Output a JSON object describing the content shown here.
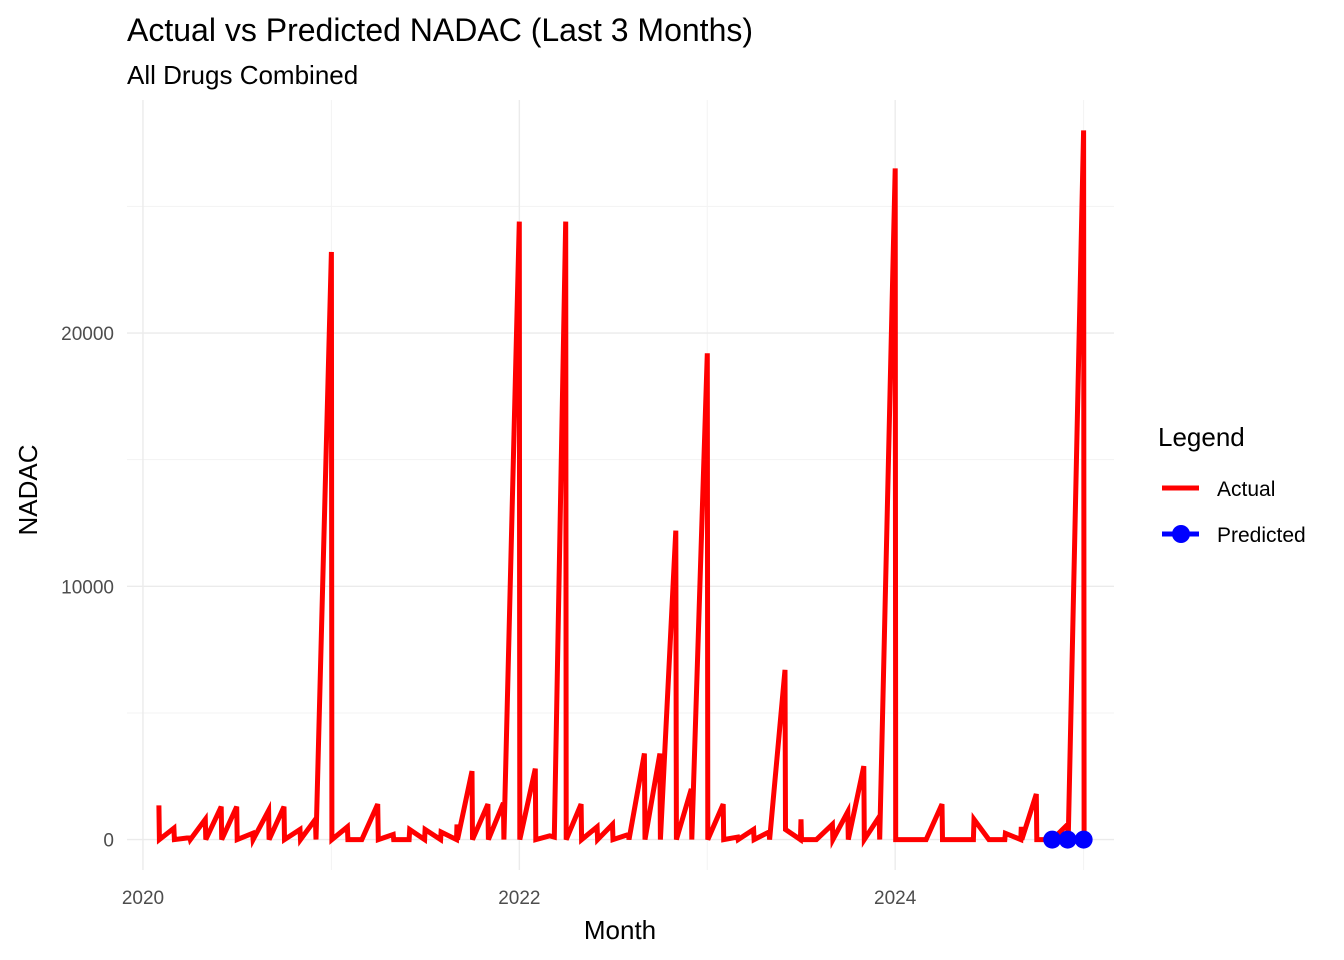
{
  "chart_data": {
    "type": "line",
    "title": "Actual vs Predicted NADAC (Last 3 Months)",
    "subtitle": "All Drugs Combined",
    "xlabel": "Month",
    "ylabel": "NADAC",
    "x_ticks": [
      "2020",
      "2022",
      "2024"
    ],
    "y_ticks": [
      0,
      10000,
      20000
    ],
    "xlim": [
      "2019-12",
      "2025-03"
    ],
    "ylim": [
      -1200,
      29200
    ],
    "grid": true,
    "legend": {
      "title": "Legend",
      "position": "right",
      "entries": [
        {
          "label": "Actual",
          "color": "#ff0000",
          "style": "line"
        },
        {
          "label": "Predicted",
          "color": "#0000ff",
          "style": "line-point"
        }
      ]
    },
    "series": [
      {
        "name": "Actual",
        "color": "#ff0000",
        "points": [
          [
            "2020-02-01",
            1350
          ],
          [
            "2020-02-02",
            0
          ],
          [
            "2020-03-01",
            450
          ],
          [
            "2020-03-02",
            0
          ],
          [
            "2020-04-01",
            80
          ],
          [
            "2020-04-02",
            0
          ],
          [
            "2020-05-01",
            800
          ],
          [
            "2020-05-02",
            0
          ],
          [
            "2020-06-01",
            1300
          ],
          [
            "2020-06-02",
            0
          ],
          [
            "2020-07-01",
            1300
          ],
          [
            "2020-07-02",
            0
          ],
          [
            "2020-08-01",
            250
          ],
          [
            "2020-08-02",
            0
          ],
          [
            "2020-09-01",
            1150
          ],
          [
            "2020-09-02",
            0
          ],
          [
            "2020-10-01",
            1300
          ],
          [
            "2020-10-02",
            0
          ],
          [
            "2020-11-01",
            400
          ],
          [
            "2020-11-02",
            0
          ],
          [
            "2020-12-01",
            800
          ],
          [
            "2020-12-02",
            0
          ],
          [
            "2021-01-01",
            23200
          ],
          [
            "2021-01-02",
            0
          ],
          [
            "2021-02-01",
            500
          ],
          [
            "2021-02-02",
            0
          ],
          [
            "2021-03-01",
            0
          ],
          [
            "2021-04-01",
            1400
          ],
          [
            "2021-04-02",
            0
          ],
          [
            "2021-05-01",
            200
          ],
          [
            "2021-05-02",
            0
          ],
          [
            "2021-06-01",
            0
          ],
          [
            "2021-06-02",
            400
          ],
          [
            "2021-07-01",
            0
          ],
          [
            "2021-07-02",
            400
          ],
          [
            "2021-08-01",
            0
          ],
          [
            "2021-08-02",
            300
          ],
          [
            "2021-09-01",
            0
          ],
          [
            "2021-09-02",
            600
          ],
          [
            "2021-09-03",
            0
          ],
          [
            "2021-10-01",
            2700
          ],
          [
            "2021-10-02",
            0
          ],
          [
            "2021-11-01",
            1400
          ],
          [
            "2021-11-02",
            0
          ],
          [
            "2021-12-01",
            1450
          ],
          [
            "2021-12-02",
            0
          ],
          [
            "2022-01-01",
            24400
          ],
          [
            "2022-01-02",
            0
          ],
          [
            "2022-02-01",
            2800
          ],
          [
            "2022-02-02",
            0
          ],
          [
            "2022-03-01",
            150
          ],
          [
            "2022-03-10",
            100
          ],
          [
            "2022-04-01",
            24400
          ],
          [
            "2022-04-02",
            0
          ],
          [
            "2022-05-01",
            1400
          ],
          [
            "2022-05-02",
            0
          ],
          [
            "2022-06-01",
            500
          ],
          [
            "2022-06-02",
            0
          ],
          [
            "2022-07-01",
            600
          ],
          [
            "2022-07-02",
            0
          ],
          [
            "2022-08-01",
            200
          ],
          [
            "2022-08-02",
            0
          ],
          [
            "2022-09-01",
            3400
          ],
          [
            "2022-09-02",
            0
          ],
          [
            "2022-10-01",
            3400
          ],
          [
            "2022-10-02",
            0
          ],
          [
            "2022-11-01",
            12200
          ],
          [
            "2022-11-02",
            0
          ],
          [
            "2022-12-01",
            2000
          ],
          [
            "2022-12-02",
            0
          ],
          [
            "2023-01-01",
            19200
          ],
          [
            "2023-01-02",
            0
          ],
          [
            "2023-02-01",
            1400
          ],
          [
            "2023-02-02",
            0
          ],
          [
            "2023-03-01",
            100
          ],
          [
            "2023-03-02",
            0
          ],
          [
            "2023-04-01",
            400
          ],
          [
            "2023-04-02",
            0
          ],
          [
            "2023-05-01",
            300
          ],
          [
            "2023-05-02",
            0
          ],
          [
            "2023-06-01",
            6700
          ],
          [
            "2023-06-02",
            400
          ],
          [
            "2023-07-01",
            0
          ],
          [
            "2023-07-02",
            800
          ],
          [
            "2023-07-03",
            0
          ],
          [
            "2023-08-01",
            0
          ],
          [
            "2023-09-01",
            600
          ],
          [
            "2023-09-02",
            0
          ],
          [
            "2023-10-01",
            1100
          ],
          [
            "2023-10-02",
            0
          ],
          [
            "2023-11-01",
            2900
          ],
          [
            "2023-11-02",
            0
          ],
          [
            "2023-12-01",
            900
          ],
          [
            "2023-12-02",
            0
          ],
          [
            "2024-01-01",
            26500
          ],
          [
            "2024-01-02",
            0
          ],
          [
            "2024-02-01",
            0
          ],
          [
            "2024-03-01",
            0
          ],
          [
            "2024-04-01",
            1400
          ],
          [
            "2024-04-02",
            0
          ],
          [
            "2024-05-01",
            0
          ],
          [
            "2024-06-01",
            0
          ],
          [
            "2024-06-02",
            800
          ],
          [
            "2024-07-01",
            0
          ],
          [
            "2024-08-01",
            0
          ],
          [
            "2024-08-02",
            250
          ],
          [
            "2024-09-01",
            0
          ],
          [
            "2024-09-02",
            500
          ],
          [
            "2024-09-03",
            0
          ],
          [
            "2024-10-01",
            1800
          ],
          [
            "2024-10-02",
            0
          ],
          [
            "2024-11-01",
            0
          ],
          [
            "2024-12-01",
            600
          ],
          [
            "2024-12-02",
            0
          ],
          [
            "2025-01-01",
            28000
          ],
          [
            "2025-01-02",
            0
          ]
        ]
      },
      {
        "name": "Predicted",
        "color": "#0000ff",
        "points": [
          [
            "2024-11-01",
            0
          ],
          [
            "2024-12-01",
            0
          ],
          [
            "2025-01-01",
            0
          ]
        ]
      }
    ]
  }
}
